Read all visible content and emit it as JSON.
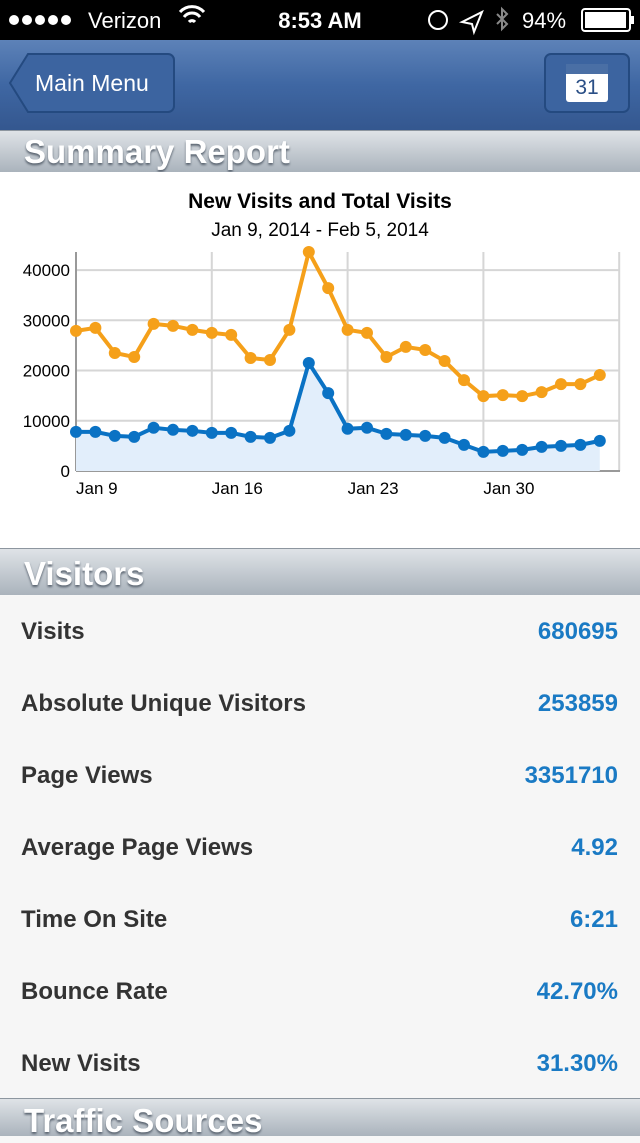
{
  "status_bar": {
    "carrier": "Verizon",
    "time": "8:53 AM",
    "battery": "94%"
  },
  "nav_bar": {
    "back_button": "Main Menu",
    "calendar_day": "31"
  },
  "sections": {
    "summary": "Summary Report",
    "visitors": "Visitors",
    "traffic": "Traffic Sources"
  },
  "chart_data": {
    "type": "line",
    "title": "New Visits and Total Visits",
    "subtitle": "Jan 9, 2014 - Feb 5, 2014",
    "categories": [
      "Jan 9",
      null,
      null,
      null,
      null,
      null,
      null,
      "Jan 16",
      null,
      null,
      null,
      null,
      null,
      null,
      "Jan 23",
      null,
      null,
      null,
      null,
      null,
      null,
      "Jan 30",
      null,
      null,
      null,
      null,
      null,
      null
    ],
    "series": [
      {
        "color": "#f5a01a",
        "values": [
          27900,
          28500,
          23500,
          22700,
          29300,
          28900,
          28100,
          27500,
          27100,
          22500,
          22100,
          28100,
          43600,
          36400,
          28100,
          27500,
          22700,
          24700,
          24100,
          21900,
          18100,
          14900,
          15100,
          14900,
          15700,
          17300,
          17300,
          19100
        ]
      },
      {
        "color": "#0a72c4",
        "area_color": "#e2eefb",
        "values": [
          7800,
          7800,
          7000,
          6800,
          8600,
          8200,
          8000,
          7600,
          7600,
          6800,
          6600,
          8000,
          21500,
          15500,
          8400,
          8600,
          7400,
          7200,
          7000,
          6600,
          5200,
          3800,
          4000,
          4200,
          4800,
          5000,
          5200,
          6000
        ]
      }
    ],
    "ylim": [
      0,
      43600
    ],
    "yticks": [
      0,
      10000,
      20000,
      30000,
      40000
    ],
    "grid": true
  },
  "visitors": {
    "rows": [
      {
        "label": "Visits",
        "value": "680695"
      },
      {
        "label": "Absolute Unique Visitors",
        "value": "253859"
      },
      {
        "label": "Page Views",
        "value": "3351710"
      },
      {
        "label": "Average Page Views",
        "value": "4.92"
      },
      {
        "label": "Time On Site",
        "value": "6:21"
      },
      {
        "label": "Bounce Rate",
        "value": "42.70%"
      },
      {
        "label": "New Visits",
        "value": "31.30%"
      }
    ]
  }
}
